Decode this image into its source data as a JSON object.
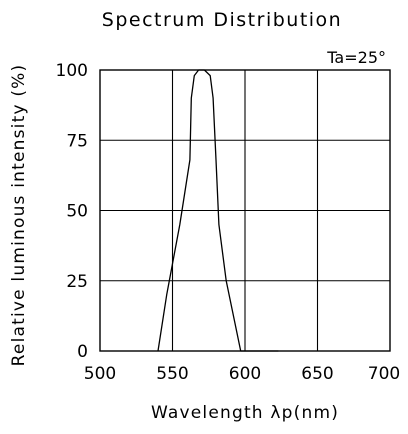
{
  "chart_data": {
    "type": "line",
    "title": "Spectrum Distribution",
    "annotation": "Ta=25°",
    "xlabel": "Wavelength λp(nm)",
    "ylabel": "Relative luminous intensity (%)",
    "xlim": [
      500,
      700
    ],
    "ylim": [
      0,
      100
    ],
    "xticks": [
      "500",
      "550",
      "600",
      "650",
      "700"
    ],
    "yticks": [
      "0",
      "25",
      "50",
      "75",
      "100"
    ],
    "grid": true,
    "series": [
      {
        "x": [
          540,
          546,
          555,
          562,
          563,
          565,
          568,
          572,
          576,
          578,
          580,
          580,
          582,
          587,
          597,
          623
        ],
        "y": [
          0,
          20,
          45,
          68,
          90,
          98,
          100,
          100,
          98,
          90,
          68,
          68,
          45,
          25,
          0,
          0
        ],
        "color": "#000000"
      }
    ]
  }
}
